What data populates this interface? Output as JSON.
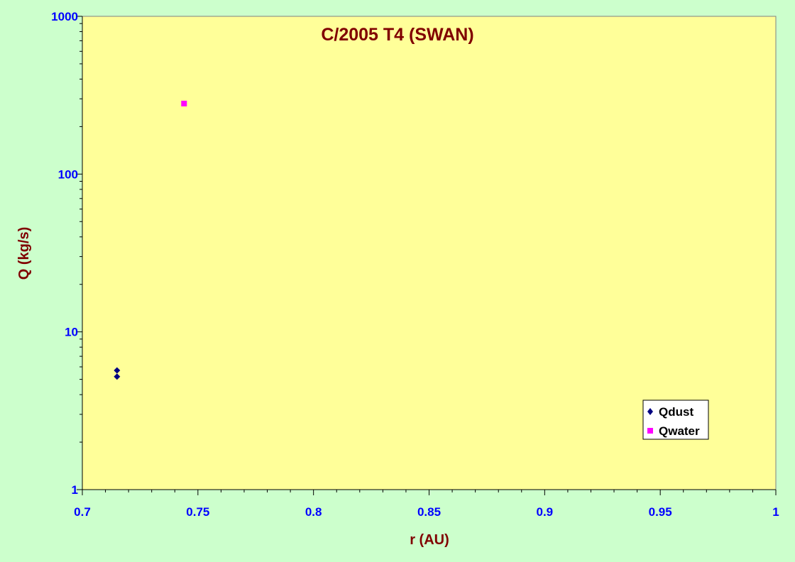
{
  "chart_data": {
    "type": "scatter",
    "title": "C/2005 T4 (SWAN)",
    "xlabel": "r (AU)",
    "ylabel": "Q (kg/s)",
    "xlim": [
      0.7,
      1
    ],
    "ylim": [
      1,
      1000
    ],
    "y_scale": "log",
    "x_ticks": [
      "0.7",
      "0.75",
      "0.8",
      "0.85",
      "0.9",
      "0.95",
      "1"
    ],
    "y_ticks": [
      "1",
      "10",
      "100",
      "1000"
    ],
    "legend_position": "lower-right",
    "grid": false,
    "series": [
      {
        "name": "Qdust",
        "marker": "diamond",
        "color": "#000080",
        "points": [
          {
            "x": 0.715,
            "y": 5.7
          },
          {
            "x": 0.715,
            "y": 5.2
          }
        ]
      },
      {
        "name": "Qwater",
        "marker": "square",
        "color": "#ff00ff",
        "points": [
          {
            "x": 0.744,
            "y": 280
          }
        ]
      }
    ],
    "colors": {
      "page_background": "#ccffcc",
      "plot_background": "#ffff99",
      "title": "#800000",
      "axis_title": "#800000",
      "tick_label": "#0000ff"
    }
  }
}
